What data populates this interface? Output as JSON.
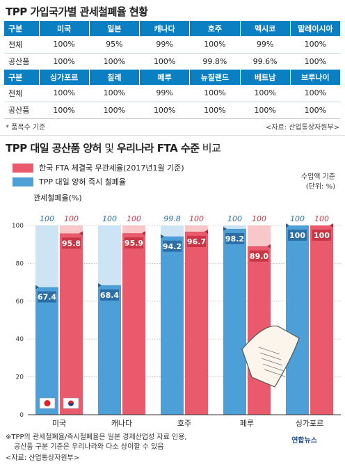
{
  "header": {
    "title": "TPP 가입국가별 관세철폐율 현황"
  },
  "table": {
    "block1": {
      "columns": [
        "구분",
        "미국",
        "일본",
        "캐나다",
        "호주",
        "멕시코",
        "말레이시아"
      ],
      "rows": [
        [
          "전체",
          "100%",
          "95%",
          "99%",
          "100%",
          "99%",
          "100%"
        ],
        [
          "공산품",
          "100%",
          "100%",
          "100%",
          "99.8%",
          "99.6%",
          "100%"
        ]
      ]
    },
    "block2": {
      "columns": [
        "구분",
        "싱가포르",
        "칠레",
        "페루",
        "뉴질랜드",
        "베트남",
        "브루나이"
      ],
      "rows": [
        [
          "전체",
          "100%",
          "100%",
          "99%",
          "100%",
          "100%",
          "100%"
        ],
        [
          "공산품",
          "100%",
          "100%",
          "100%",
          "100%",
          "100%",
          "100%"
        ]
      ]
    },
    "note": "* 품목수 기준",
    "source": "<자료: 산업통상자원부>"
  },
  "chart_section": {
    "title_bold": "TPP 대일 공산품 양허",
    "title_mid": " 및 ",
    "title_bold2": "우리나라 FTA 수준",
    "title_tail": " 비교",
    "unit_line1": "수입액 기준",
    "unit_line2": "(단위: %)",
    "rate_label": "관세철폐율(%)"
  },
  "chart_data": {
    "type": "bar",
    "categories": [
      "미국",
      "캐나다",
      "호주",
      "페루",
      "싱가포르"
    ],
    "series": [
      {
        "name": "TPP 대일 양허 즉시 철폐율",
        "color": "#4d9fd8",
        "light": "#cde4f4",
        "values": [
          67.4,
          68.4,
          94.2,
          98.2,
          100
        ],
        "totals": [
          100,
          100,
          99.8,
          100,
          100
        ]
      },
      {
        "name": "한국 FTA 체결국 무관세율(2017년1월 기준)",
        "color": "#e95a6c",
        "light": "#f7c7c9",
        "values": [
          95.8,
          95.9,
          96.7,
          89.0,
          100
        ],
        "totals": [
          100,
          100,
          100,
          100,
          100
        ]
      }
    ],
    "value_labels": {
      "immediate": [
        "67.4",
        "68.4",
        "94.2",
        "98.2",
        "100"
      ],
      "korea": [
        "95.8",
        "95.9",
        "96.7",
        "89.0",
        "100"
      ],
      "top_immediate": [
        "100",
        "100",
        "99.8",
        "100",
        "100"
      ],
      "top_korea": [
        "100",
        "100",
        "100",
        "100",
        "100"
      ]
    },
    "yticks": [
      "0",
      "20",
      "40",
      "60",
      "80",
      "100"
    ],
    "ylim": [
      0,
      100
    ]
  },
  "footnotes": {
    "line1": "※TPP의 관세철폐율/즉시철폐율은 일본 경제산업성 자료 인용,",
    "line2": "공산품 구분 기준은 우리나라와 다소 상이할 수 있음",
    "source": "<자료: 산업통상자원부>",
    "logo": "연합뉴스"
  }
}
